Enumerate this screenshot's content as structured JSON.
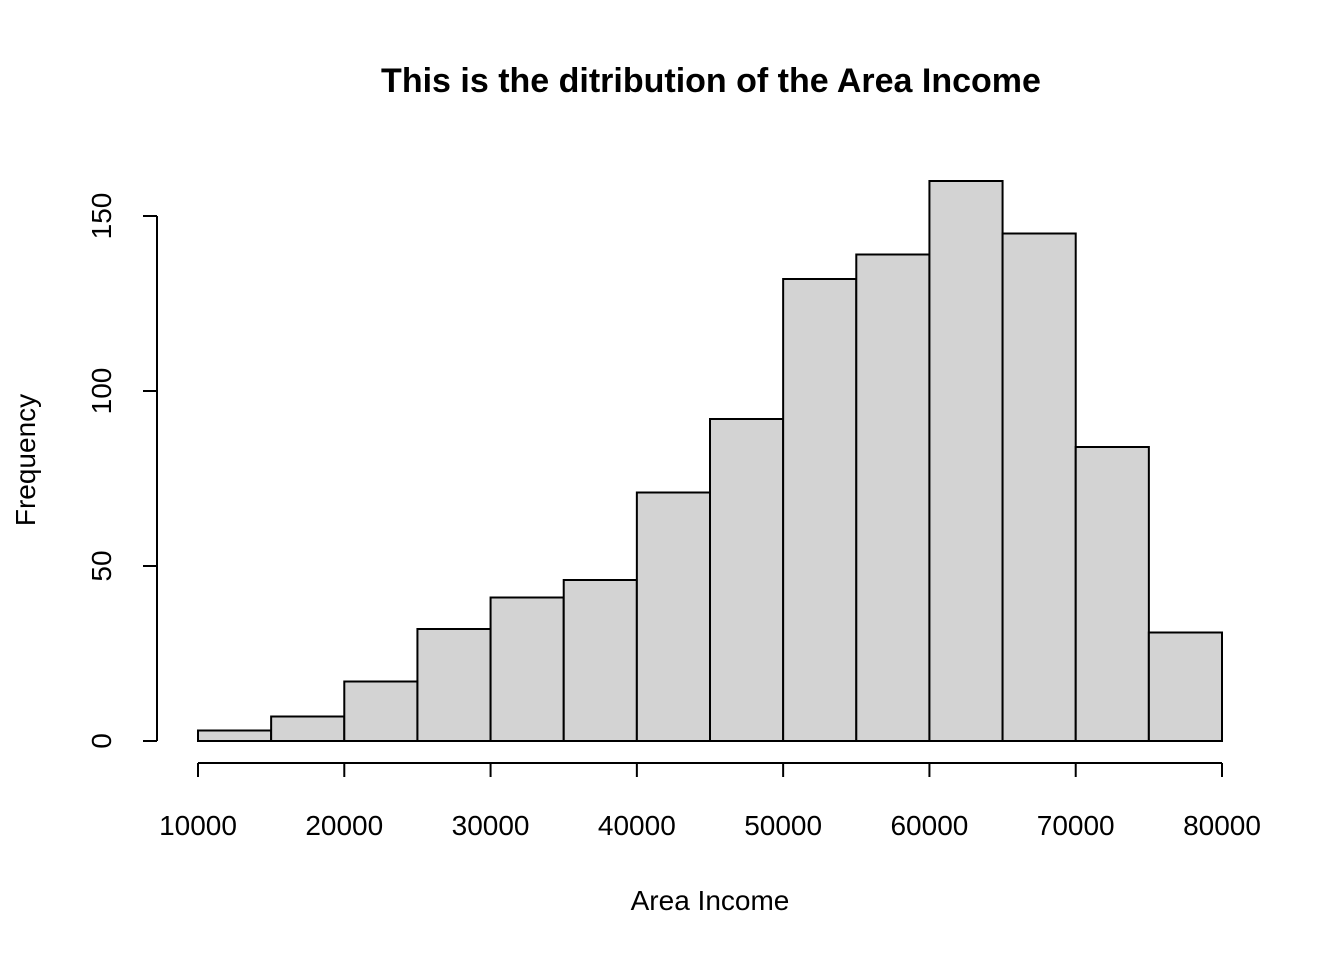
{
  "chart_data": {
    "type": "bar",
    "title": "This is the ditribution of the Area Income",
    "xlabel": "Area Income",
    "ylabel": "Frequency",
    "bins": [
      {
        "start": 10000,
        "end": 15000,
        "count": 3
      },
      {
        "start": 15000,
        "end": 20000,
        "count": 7
      },
      {
        "start": 20000,
        "end": 25000,
        "count": 17
      },
      {
        "start": 25000,
        "end": 30000,
        "count": 32
      },
      {
        "start": 30000,
        "end": 35000,
        "count": 41
      },
      {
        "start": 35000,
        "end": 40000,
        "count": 46
      },
      {
        "start": 40000,
        "end": 45000,
        "count": 71
      },
      {
        "start": 45000,
        "end": 50000,
        "count": 92
      },
      {
        "start": 50000,
        "end": 55000,
        "count": 132
      },
      {
        "start": 55000,
        "end": 60000,
        "count": 139
      },
      {
        "start": 60000,
        "end": 65000,
        "count": 160
      },
      {
        "start": 65000,
        "end": 70000,
        "count": 145
      },
      {
        "start": 70000,
        "end": 75000,
        "count": 84
      },
      {
        "start": 75000,
        "end": 80000,
        "count": 31
      }
    ],
    "x_ticks": [
      10000,
      20000,
      30000,
      40000,
      50000,
      60000,
      70000,
      80000
    ],
    "y_ticks": [
      0,
      50,
      100,
      150
    ],
    "xlim": [
      10000,
      80000
    ],
    "ylim": [
      0,
      150
    ],
    "grid": false,
    "colors": {
      "bar_fill": "#d3d3d3",
      "bar_stroke": "#000000"
    }
  }
}
